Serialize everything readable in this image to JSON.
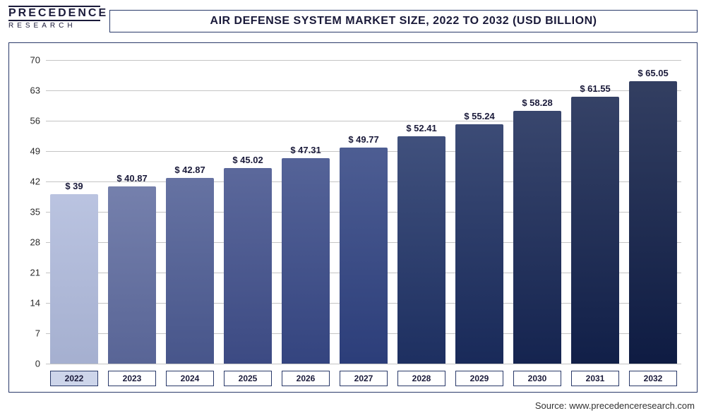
{
  "logo": {
    "top": "PRECEDENCE",
    "bottom": "RESEARCH"
  },
  "title": "AIR DEFENSE SYSTEM MARKET SIZE, 2022 TO 2032 (USD BILLION)",
  "chart": {
    "type": "bar",
    "ylim": [
      0,
      70
    ],
    "ytick_step": 7,
    "yticks": [
      0,
      7,
      14,
      21,
      28,
      35,
      42,
      49,
      56,
      63,
      70
    ],
    "categories": [
      "2022",
      "2023",
      "2024",
      "2025",
      "2026",
      "2027",
      "2028",
      "2029",
      "2030",
      "2031",
      "2032"
    ],
    "values": [
      39,
      40.87,
      42.87,
      45.02,
      47.31,
      49.77,
      52.41,
      55.24,
      58.28,
      61.55,
      65.05
    ],
    "value_labels": [
      "$ 39",
      "$ 40.87",
      "$ 42.87",
      "$ 45.02",
      "$ 47.31",
      "$ 49.77",
      "$ 52.41",
      "$ 55.24",
      "$ 58.28",
      "$ 61.55",
      "$ 65.05"
    ],
    "bar_colors": [
      "#aeb9db",
      "#5d6a9e",
      "#4b5a92",
      "#3f4e8a",
      "#374886",
      "#2e4180",
      "#1f3266",
      "#1a2c5e",
      "#162654",
      "#12214c",
      "#0f1d46"
    ],
    "grid_color": "#c4c4c4",
    "background_color": "#ffffff",
    "title_fontsize": 16,
    "label_fontsize": 13,
    "x_label_highlight_bg": "#cdd5ea",
    "x_label_highlight_index": 0,
    "bar_width": 0.82
  },
  "source": "Source: www.precedenceresearch.com"
}
